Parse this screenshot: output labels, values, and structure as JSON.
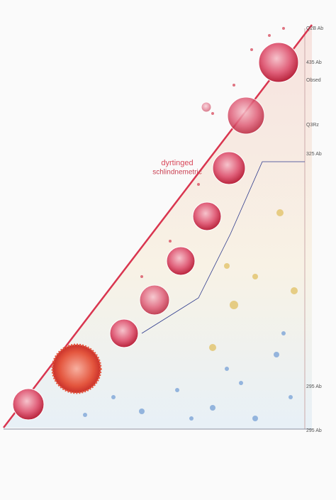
{
  "title": "dyrtinged",
  "subtitle": "schlindnemetric",
  "side_labels": [
    "Q2B Ab",
    "435 Ab",
    "Obsed",
    "Q3Rz",
    "325 Ab",
    "295 Ab",
    "295 Ab"
  ]
}
